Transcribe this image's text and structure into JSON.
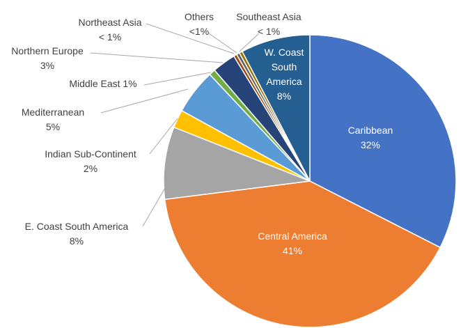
{
  "chart_data": {
    "type": "pie",
    "title": "",
    "legend": "none",
    "slices": [
      {
        "name": "Caribbean",
        "value": 32.5,
        "label": "32%",
        "color": "#4472C4",
        "label_inside": true
      },
      {
        "name": "Central America",
        "value": 40.5,
        "label": "41%",
        "color": "#ED7D31",
        "label_inside": true
      },
      {
        "name": "E. Coast South America",
        "value": 8.0,
        "label": "8%",
        "color": "#A5A5A5",
        "label_inside": false
      },
      {
        "name": "Indian Sub-Continent",
        "value": 2.0,
        "label": "2%",
        "color": "#FFC000",
        "label_inside": false
      },
      {
        "name": "Mediterranean",
        "value": 5.0,
        "label": "5%",
        "color": "#5B9BD5",
        "label_inside": false
      },
      {
        "name": "Middle East",
        "value": 0.7,
        "label": "1%",
        "color": "#70AD47",
        "label_inside": false
      },
      {
        "name": "Northern Europe",
        "value": 2.6,
        "label": "3%",
        "color": "#264478",
        "label_inside": false
      },
      {
        "name": "Northeast Asia",
        "value": 0.35,
        "label": "< 1%",
        "color": "#9E480E",
        "label_inside": false
      },
      {
        "name": "Others",
        "value": 0.35,
        "label": "<1%",
        "color": "#636363",
        "label_inside": false
      },
      {
        "name": "Southeast Asia",
        "value": 0.35,
        "label": "< 1%",
        "color": "#997300",
        "label_inside": false
      },
      {
        "name": "W. Coast South America",
        "value": 7.65,
        "label": "8%",
        "color": "#255E91",
        "label_inside": true
      }
    ]
  }
}
